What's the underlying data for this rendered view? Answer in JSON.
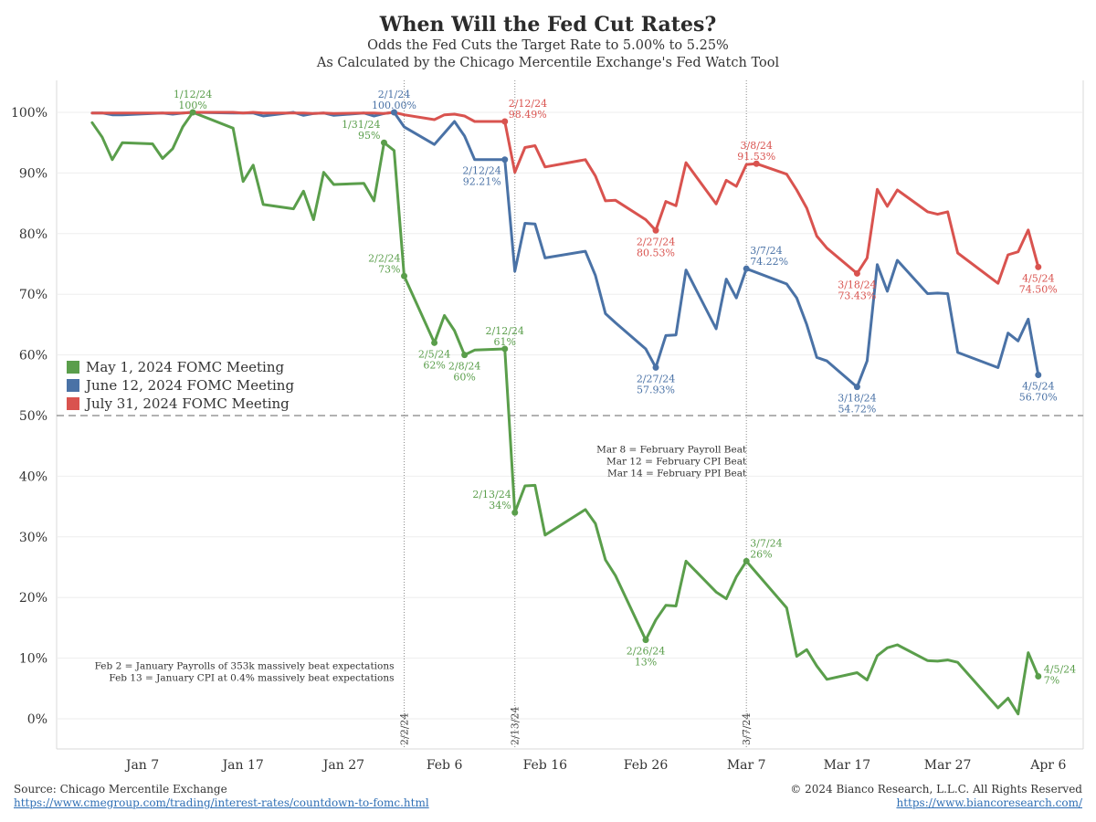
{
  "title": "When Will the Fed Cut Rates?",
  "subtitle_lines": [
    "Odds the Fed Cuts the Target Rate to 5.00% to 5.25%",
    "As Calculated by the Chicago Mercentile Exchange's Fed Watch Tool"
  ],
  "footer": {
    "source": "Source: Chicago Mercentile Exchange",
    "source_url": "https://www.cmegroup.com/trading/interest-rates/countdown-to-fomc.html",
    "copyright": "© 2024 Bianco Research, L.L.C. All Rights Reserved",
    "site_url": "https://www.biancoresearch.com/"
  },
  "chart_data": {
    "type": "line",
    "ylim": [
      0,
      100
    ],
    "yticks": [
      0,
      10,
      20,
      30,
      40,
      50,
      60,
      70,
      80,
      90,
      100
    ],
    "ytick_labels": [
      "0%",
      "10%",
      "20%",
      "30%",
      "40%",
      "50%",
      "60%",
      "70%",
      "80%",
      "90%",
      "100%"
    ],
    "xlim": [
      "2024-01-01",
      "2024-04-09"
    ],
    "xticks": [
      "2024-01-07",
      "2024-01-17",
      "2024-01-27",
      "2024-02-06",
      "2024-02-16",
      "2024-02-26",
      "2024-03-07",
      "2024-03-17",
      "2024-03-27",
      "2024-04-06"
    ],
    "xtick_labels": [
      "Jan 7",
      "Jan 17",
      "Jan 27",
      "Feb 6",
      "Feb 16",
      "Feb 26",
      "Mar 7",
      "Mar 17",
      "Mar 27",
      "Apr 6"
    ],
    "grid": true,
    "legend_position": "left",
    "reference_line": {
      "y": 50,
      "style": "dashed"
    },
    "vlines": [
      {
        "x": "2024-02-02",
        "label": "2/2/24"
      },
      {
        "x": "2024-02-13",
        "label": "2/13/24"
      },
      {
        "x": "2024-03-07",
        "label": "3/7/24"
      }
    ],
    "notes": [
      {
        "lines": [
          "Feb 2 = January Payrolls of 353k massively beat expectations",
          "Feb 13 = January CPI at 0.4% massively beat expectations"
        ],
        "x": "2024-02-01",
        "y": 8.2
      },
      {
        "lines": [
          "Mar 8 = February Payroll Beat",
          "Mar 12 = February CPI Beat",
          "Mar 14 = February PPI Beat"
        ],
        "x": "2024-03-07",
        "y": 43.9
      }
    ],
    "series": [
      {
        "name": "May 1, 2024 FOMC Meeting",
        "color": "#5a9e4b",
        "points": [
          [
            "2024-01-02",
            98.3
          ],
          [
            "2024-01-03",
            95.9
          ],
          [
            "2024-01-04",
            92.2
          ],
          [
            "2024-01-05",
            95.0
          ],
          [
            "2024-01-08",
            94.8
          ],
          [
            "2024-01-09",
            92.4
          ],
          [
            "2024-01-10",
            94.0
          ],
          [
            "2024-01-11",
            97.6
          ],
          [
            "2024-01-12",
            100
          ],
          [
            "2024-01-16",
            97.4
          ],
          [
            "2024-01-17",
            88.6
          ],
          [
            "2024-01-18",
            91.3
          ],
          [
            "2024-01-19",
            84.8
          ],
          [
            "2024-01-22",
            84.1
          ],
          [
            "2024-01-23",
            87.0
          ],
          [
            "2024-01-24",
            82.3
          ],
          [
            "2024-01-25",
            90.1
          ],
          [
            "2024-01-26",
            88.1
          ],
          [
            "2024-01-29",
            88.3
          ],
          [
            "2024-01-30",
            85.4
          ],
          [
            "2024-01-31",
            95
          ],
          [
            "2024-02-01",
            93.7
          ],
          [
            "2024-02-02",
            73
          ],
          [
            "2024-02-05",
            62
          ],
          [
            "2024-02-06",
            66.5
          ],
          [
            "2024-02-07",
            64.0
          ],
          [
            "2024-02-08",
            60
          ],
          [
            "2024-02-09",
            60.8
          ],
          [
            "2024-02-12",
            61
          ],
          [
            "2024-02-13",
            34
          ],
          [
            "2024-02-14",
            38.4
          ],
          [
            "2024-02-15",
            38.5
          ],
          [
            "2024-02-16",
            30.3
          ],
          [
            "2024-02-20",
            34.5
          ],
          [
            "2024-02-21",
            32.2
          ],
          [
            "2024-02-22",
            26.2
          ],
          [
            "2024-02-23",
            23.6
          ],
          [
            "2024-02-26",
            13
          ],
          [
            "2024-02-27",
            16.3
          ],
          [
            "2024-02-28",
            18.7
          ],
          [
            "2024-02-29",
            18.6
          ],
          [
            "2024-03-01",
            26.0
          ],
          [
            "2024-03-04",
            20.9
          ],
          [
            "2024-03-05",
            19.8
          ],
          [
            "2024-03-06",
            23.4
          ],
          [
            "2024-03-07",
            26
          ],
          [
            "2024-03-11",
            18.3
          ],
          [
            "2024-03-12",
            10.3
          ],
          [
            "2024-03-13",
            11.4
          ],
          [
            "2024-03-14",
            8.7
          ],
          [
            "2024-03-15",
            6.5
          ],
          [
            "2024-03-18",
            7.6
          ],
          [
            "2024-03-19",
            6.4
          ],
          [
            "2024-03-20",
            10.4
          ],
          [
            "2024-03-21",
            11.7
          ],
          [
            "2024-03-22",
            12.2
          ],
          [
            "2024-03-25",
            9.6
          ],
          [
            "2024-03-26",
            9.5
          ],
          [
            "2024-03-27",
            9.7
          ],
          [
            "2024-03-28",
            9.3
          ],
          [
            "2024-04-01",
            1.8
          ],
          [
            "2024-04-02",
            3.4
          ],
          [
            "2024-04-03",
            0.8
          ],
          [
            "2024-04-04",
            10.9
          ],
          [
            "2024-04-05",
            7
          ]
        ],
        "labels": [
          {
            "x": "2024-01-12",
            "y": 100,
            "date": "1/12/24",
            "value": "100%",
            "pos": "above"
          },
          {
            "x": "2024-01-31",
            "y": 95,
            "date": "1/31/24",
            "value": "95%",
            "pos": "left-above"
          },
          {
            "x": "2024-02-02",
            "y": 73,
            "date": "2/2/24",
            "value": "73%",
            "pos": "left-above"
          },
          {
            "x": "2024-02-05",
            "y": 62,
            "date": "2/5/24",
            "value": "62%",
            "pos": "below"
          },
          {
            "x": "2024-02-08",
            "y": 60,
            "date": "2/8/24",
            "value": "60%",
            "pos": "below"
          },
          {
            "x": "2024-02-12",
            "y": 61,
            "date": "2/12/24",
            "value": "61%",
            "pos": "above"
          },
          {
            "x": "2024-02-13",
            "y": 34,
            "date": "2/13/24",
            "value": "34%",
            "pos": "left-above"
          },
          {
            "x": "2024-02-26",
            "y": 13,
            "date": "2/26/24",
            "value": "13%",
            "pos": "below"
          },
          {
            "x": "2024-03-07",
            "y": 26,
            "date": "3/7/24",
            "value": "26%",
            "pos": "right-above"
          },
          {
            "x": "2024-04-05",
            "y": 7,
            "date": "4/5/24",
            "value": "7%",
            "pos": "right"
          }
        ]
      },
      {
        "name": "June 12, 2024 FOMC Meeting",
        "color": "#4a72a6",
        "points": [
          [
            "2024-01-02",
            99.9
          ],
          [
            "2024-01-03",
            99.9
          ],
          [
            "2024-01-04",
            99.6
          ],
          [
            "2024-01-05",
            99.6
          ],
          [
            "2024-01-08",
            99.8
          ],
          [
            "2024-01-09",
            99.9
          ],
          [
            "2024-01-10",
            99.7
          ],
          [
            "2024-01-11",
            99.9
          ],
          [
            "2024-01-12",
            100
          ],
          [
            "2024-01-16",
            99.9
          ],
          [
            "2024-01-17",
            99.9
          ],
          [
            "2024-01-18",
            99.9
          ],
          [
            "2024-01-19",
            99.4
          ],
          [
            "2024-01-22",
            100
          ],
          [
            "2024-01-23",
            99.5
          ],
          [
            "2024-01-24",
            99.8
          ],
          [
            "2024-01-25",
            99.9
          ],
          [
            "2024-01-26",
            99.5
          ],
          [
            "2024-01-29",
            99.9
          ],
          [
            "2024-01-30",
            99.4
          ],
          [
            "2024-01-31",
            99.8
          ],
          [
            "2024-02-01",
            100
          ],
          [
            "2024-02-02",
            97.6
          ],
          [
            "2024-02-05",
            94.7
          ],
          [
            "2024-02-06",
            96.6
          ],
          [
            "2024-02-07",
            98.5
          ],
          [
            "2024-02-08",
            96.1
          ],
          [
            "2024-02-09",
            92.2
          ],
          [
            "2024-02-12",
            92.21
          ],
          [
            "2024-02-13",
            73.8
          ],
          [
            "2024-02-14",
            81.7
          ],
          [
            "2024-02-15",
            81.6
          ],
          [
            "2024-02-16",
            76.0
          ],
          [
            "2024-02-20",
            77.1
          ],
          [
            "2024-02-21",
            73.1
          ],
          [
            "2024-02-22",
            66.8
          ],
          [
            "2024-02-23",
            65.3
          ],
          [
            "2024-02-26",
            61.0
          ],
          [
            "2024-02-27",
            57.93
          ],
          [
            "2024-02-28",
            63.2
          ],
          [
            "2024-02-29",
            63.3
          ],
          [
            "2024-03-01",
            74.0
          ],
          [
            "2024-03-04",
            64.3
          ],
          [
            "2024-03-05",
            72.5
          ],
          [
            "2024-03-06",
            69.4
          ],
          [
            "2024-03-07",
            74.22
          ],
          [
            "2024-03-11",
            71.7
          ],
          [
            "2024-03-12",
            69.4
          ],
          [
            "2024-03-13",
            65.0
          ],
          [
            "2024-03-14",
            59.6
          ],
          [
            "2024-03-15",
            59.0
          ],
          [
            "2024-03-18",
            54.72
          ],
          [
            "2024-03-19",
            59.0
          ],
          [
            "2024-03-20",
            74.9
          ],
          [
            "2024-03-21",
            70.5
          ],
          [
            "2024-03-22",
            75.6
          ],
          [
            "2024-03-25",
            70.1
          ],
          [
            "2024-03-26",
            70.2
          ],
          [
            "2024-03-27",
            70.1
          ],
          [
            "2024-03-28",
            60.4
          ],
          [
            "2024-04-01",
            57.9
          ],
          [
            "2024-04-02",
            63.6
          ],
          [
            "2024-04-03",
            62.3
          ],
          [
            "2024-04-04",
            65.9
          ],
          [
            "2024-04-05",
            56.7
          ]
        ],
        "labels": [
          {
            "x": "2024-02-01",
            "y": 100,
            "date": "2/1/24",
            "value": "100.00%",
            "pos": "above"
          },
          {
            "x": "2024-02-12",
            "y": 92.21,
            "date": "2/12/24",
            "value": "92.21%",
            "pos": "left-below"
          },
          {
            "x": "2024-02-27",
            "y": 57.93,
            "date": "2/27/24",
            "value": "57.93%",
            "pos": "below"
          },
          {
            "x": "2024-03-07",
            "y": 74.22,
            "date": "3/7/24",
            "value": "74.22%",
            "pos": "right-above"
          },
          {
            "x": "2024-03-18",
            "y": 54.72,
            "date": "3/18/24",
            "value": "54.72%",
            "pos": "below"
          },
          {
            "x": "2024-04-05",
            "y": 56.7,
            "date": "4/5/24",
            "value": "56.70%",
            "pos": "below"
          }
        ]
      },
      {
        "name": "July 31, 2024 FOMC Meeting",
        "color": "#d9534f",
        "points": [
          [
            "2024-01-02",
            99.9
          ],
          [
            "2024-01-03",
            99.9
          ],
          [
            "2024-01-04",
            99.9
          ],
          [
            "2024-01-05",
            99.9
          ],
          [
            "2024-01-08",
            99.9
          ],
          [
            "2024-01-09",
            99.9
          ],
          [
            "2024-01-10",
            99.9
          ],
          [
            "2024-01-11",
            99.9
          ],
          [
            "2024-01-12",
            100
          ],
          [
            "2024-01-16",
            100
          ],
          [
            "2024-01-17",
            99.9
          ],
          [
            "2024-01-18",
            100
          ],
          [
            "2024-01-19",
            99.9
          ],
          [
            "2024-01-22",
            99.9
          ],
          [
            "2024-01-23",
            99.9
          ],
          [
            "2024-01-24",
            99.8
          ],
          [
            "2024-01-25",
            99.9
          ],
          [
            "2024-01-26",
            99.8
          ],
          [
            "2024-01-29",
            99.9
          ],
          [
            "2024-01-30",
            99.9
          ],
          [
            "2024-01-31",
            99.8
          ],
          [
            "2024-02-01",
            100
          ],
          [
            "2024-02-02",
            99.6
          ],
          [
            "2024-02-05",
            98.8
          ],
          [
            "2024-02-06",
            99.6
          ],
          [
            "2024-02-07",
            99.7
          ],
          [
            "2024-02-08",
            99.4
          ],
          [
            "2024-02-09",
            98.5
          ],
          [
            "2024-02-12",
            98.49
          ],
          [
            "2024-02-13",
            90.1
          ],
          [
            "2024-02-14",
            94.2
          ],
          [
            "2024-02-15",
            94.5
          ],
          [
            "2024-02-16",
            91.0
          ],
          [
            "2024-02-20",
            92.2
          ],
          [
            "2024-02-21",
            89.5
          ],
          [
            "2024-02-22",
            85.4
          ],
          [
            "2024-02-23",
            85.5
          ],
          [
            "2024-02-26",
            82.3
          ],
          [
            "2024-02-27",
            80.53
          ],
          [
            "2024-02-28",
            85.3
          ],
          [
            "2024-02-29",
            84.6
          ],
          [
            "2024-03-01",
            91.7
          ],
          [
            "2024-03-04",
            84.9
          ],
          [
            "2024-03-05",
            88.8
          ],
          [
            "2024-03-06",
            87.8
          ],
          [
            "2024-03-07",
            91.4
          ],
          [
            "2024-03-08",
            91.53
          ],
          [
            "2024-03-11",
            89.8
          ],
          [
            "2024-03-12",
            87.2
          ],
          [
            "2024-03-13",
            84.2
          ],
          [
            "2024-03-14",
            79.6
          ],
          [
            "2024-03-15",
            77.6
          ],
          [
            "2024-03-18",
            73.43
          ],
          [
            "2024-03-19",
            76.0
          ],
          [
            "2024-03-20",
            87.3
          ],
          [
            "2024-03-21",
            84.5
          ],
          [
            "2024-03-22",
            87.2
          ],
          [
            "2024-03-25",
            83.6
          ],
          [
            "2024-03-26",
            83.2
          ],
          [
            "2024-03-27",
            83.6
          ],
          [
            "2024-03-28",
            76.8
          ],
          [
            "2024-04-01",
            71.8
          ],
          [
            "2024-04-02",
            76.5
          ],
          [
            "2024-04-03",
            77.0
          ],
          [
            "2024-04-04",
            80.6
          ],
          [
            "2024-04-05",
            74.5
          ]
        ],
        "labels": [
          {
            "x": "2024-02-12",
            "y": 98.49,
            "date": "2/12/24",
            "value": "98.49%",
            "pos": "right-above"
          },
          {
            "x": "2024-02-27",
            "y": 80.53,
            "date": "2/27/24",
            "value": "80.53%",
            "pos": "below"
          },
          {
            "x": "2024-03-08",
            "y": 91.53,
            "date": "3/8/24",
            "value": "91.53%",
            "pos": "above"
          },
          {
            "x": "2024-03-18",
            "y": 73.43,
            "date": "3/18/24",
            "value": "73.43%",
            "pos": "below"
          },
          {
            "x": "2024-04-05",
            "y": 74.5,
            "date": "4/5/24",
            "value": "74.50%",
            "pos": "below"
          }
        ]
      }
    ]
  }
}
